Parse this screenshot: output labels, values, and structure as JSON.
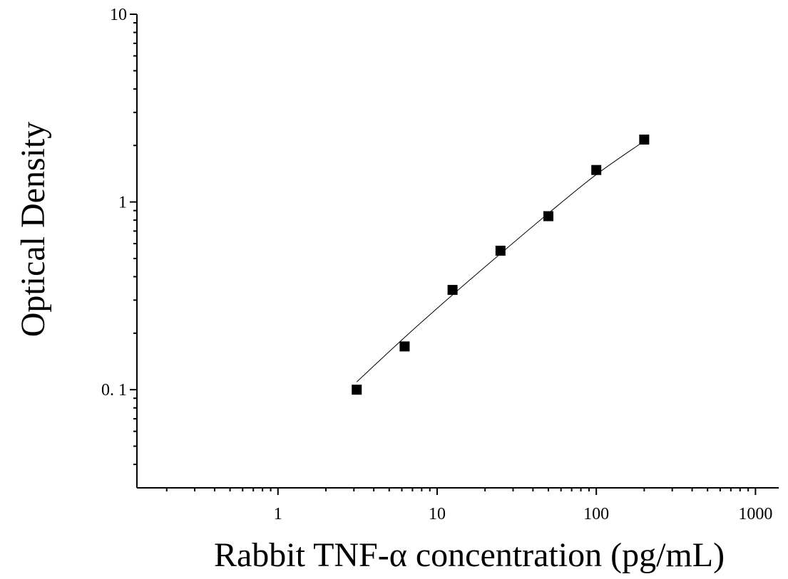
{
  "chart_data": {
    "type": "scatter",
    "xlabel": "Rabbit TNF-α concentration (pg/mL)",
    "ylabel": "Optical Density",
    "x_scale": "log",
    "y_scale": "log",
    "xlim": [
      0.13,
      1400
    ],
    "ylim": [
      0.03,
      10
    ],
    "x_ticks": [
      {
        "value": 1,
        "label": "1"
      },
      {
        "value": 10,
        "label": "10"
      },
      {
        "value": 100,
        "label": "100"
      },
      {
        "value": 1000,
        "label": "1000"
      }
    ],
    "y_ticks": [
      {
        "value": 0.1,
        "label": "0. 1"
      },
      {
        "value": 1,
        "label": "1"
      },
      {
        "value": 10,
        "label": "10"
      }
    ],
    "grid": false,
    "legend": "none",
    "marker": "square",
    "color": "#000000",
    "series": [
      {
        "x": [
          3.125,
          6.25,
          12.5,
          25,
          50,
          100,
          200
        ],
        "y": [
          0.1,
          0.17,
          0.34,
          0.55,
          0.84,
          1.48,
          2.15
        ]
      }
    ],
    "fit_curve": {
      "x": [
        3.125,
        6.25,
        12.5,
        25,
        50,
        100,
        200
      ],
      "y": [
        0.11,
        0.19,
        0.32,
        0.53,
        0.87,
        1.4,
        2.11
      ]
    }
  }
}
